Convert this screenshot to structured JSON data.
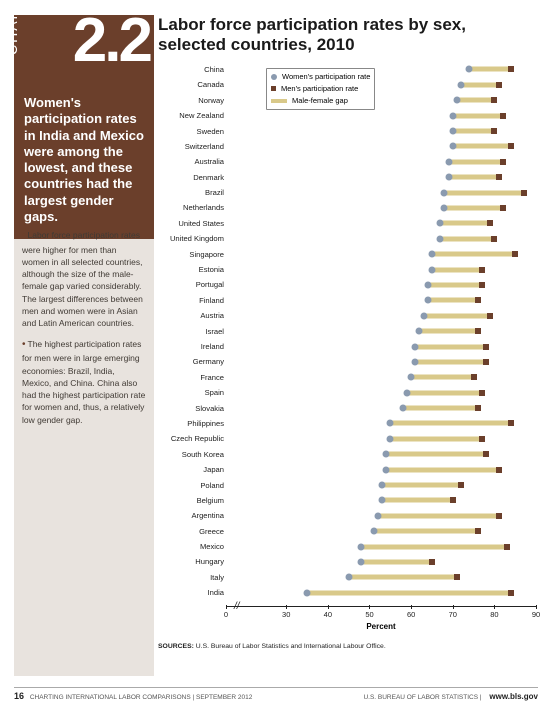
{
  "sidebar": {
    "chart_label": "CHART",
    "chart_number": "2.2",
    "highlight": "Women's participation rates in India and Mexico were among the lowest, and these countries had the largest gender gaps.",
    "bullets": [
      "Labor force participation rates were higher for men than women in all selected countries, although the size of the male-female gap varied considerably. The largest differences between men and women were in Asian and Latin American countries.",
      "The highest participation rates for men were in large emerging economies: Brazil, India, Mexico, and China. China also had the highest participation rate for women and, thus, a relatively low gender gap."
    ],
    "brown": "#6b3f2b",
    "tan": "#e8e3de"
  },
  "chart": {
    "title": "Labor force participation rates by sex, selected countries, 2010",
    "type": "dot-gap",
    "xlim": [
      20,
      90
    ],
    "xticks": [
      0,
      30,
      40,
      50,
      60,
      70,
      80,
      90
    ],
    "axis_break_glyph": "//",
    "axis_label": "Percent",
    "legend": {
      "women": "Women's participation rate",
      "men": "Men's participation rate",
      "gap": "Male-female gap"
    },
    "colors": {
      "women": "#8a9aaf",
      "men": "#6b3f2b",
      "gap": "#d9c98a",
      "axis": "#222222",
      "bg": "#ffffff"
    },
    "label_fontsize": 7.6,
    "rows": [
      {
        "c": "China",
        "w": 74,
        "m": 84
      },
      {
        "c": "Canada",
        "w": 72,
        "m": 81
      },
      {
        "c": "Norway",
        "w": 71,
        "m": 80
      },
      {
        "c": "New Zealand",
        "w": 70,
        "m": 82
      },
      {
        "c": "Sweden",
        "w": 70,
        "m": 80
      },
      {
        "c": "Switzerland",
        "w": 70,
        "m": 84
      },
      {
        "c": "Australia",
        "w": 69,
        "m": 82
      },
      {
        "c": "Denmark",
        "w": 69,
        "m": 81
      },
      {
        "c": "Brazil",
        "w": 68,
        "m": 87
      },
      {
        "c": "Netherlands",
        "w": 68,
        "m": 82
      },
      {
        "c": "United States",
        "w": 67,
        "m": 79
      },
      {
        "c": "United Kingdom",
        "w": 67,
        "m": 80
      },
      {
        "c": "Singapore",
        "w": 65,
        "m": 85
      },
      {
        "c": "Estonia",
        "w": 65,
        "m": 77
      },
      {
        "c": "Portugal",
        "w": 64,
        "m": 77
      },
      {
        "c": "Finland",
        "w": 64,
        "m": 76
      },
      {
        "c": "Austria",
        "w": 63,
        "m": 79
      },
      {
        "c": "Israel",
        "w": 62,
        "m": 76
      },
      {
        "c": "Ireland",
        "w": 61,
        "m": 78
      },
      {
        "c": "Germany",
        "w": 61,
        "m": 78
      },
      {
        "c": "France",
        "w": 60,
        "m": 75
      },
      {
        "c": "Spain",
        "w": 59,
        "m": 77
      },
      {
        "c": "Slovakia",
        "w": 58,
        "m": 76
      },
      {
        "c": "Philippines",
        "w": 55,
        "m": 84
      },
      {
        "c": "Czech Republic",
        "w": 55,
        "m": 77
      },
      {
        "c": "South Korea",
        "w": 54,
        "m": 78
      },
      {
        "c": "Japan",
        "w": 54,
        "m": 81
      },
      {
        "c": "Poland",
        "w": 53,
        "m": 72
      },
      {
        "c": "Belgium",
        "w": 53,
        "m": 70
      },
      {
        "c": "Argentina",
        "w": 52,
        "m": 81
      },
      {
        "c": "Greece",
        "w": 51,
        "m": 76
      },
      {
        "c": "Mexico",
        "w": 48,
        "m": 83
      },
      {
        "c": "Hungary",
        "w": 48,
        "m": 65
      },
      {
        "c": "Italy",
        "w": 45,
        "m": 71
      },
      {
        "c": "India",
        "w": 35,
        "m": 84
      }
    ],
    "sources_label": "SOURCES:",
    "sources_text": "U.S. Bureau of Labor Statistics and International Labour Office."
  },
  "footer": {
    "page": "16",
    "left_a": "CHARTING INTERNATIONAL LABOR COMPARISONS",
    "left_b": "SEPTEMBER 2012",
    "right_a": "U.S. BUREAU OF LABOR STATISTICS",
    "url": "www.bls.gov"
  }
}
